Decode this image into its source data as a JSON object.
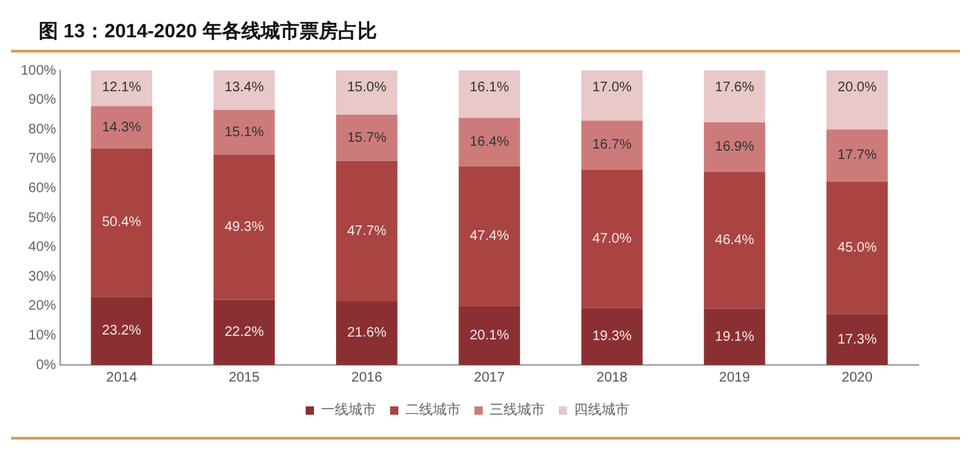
{
  "chart_data": {
    "type": "bar",
    "title": "图 13：2014-2020 年各线城市票房占比",
    "stacked": true,
    "categories": [
      "2014",
      "2015",
      "2016",
      "2017",
      "2018",
      "2019",
      "2020"
    ],
    "series": [
      {
        "name": "一线城市",
        "color": "#8b3032",
        "values": [
          23.2,
          22.2,
          21.6,
          20.1,
          19.3,
          19.1,
          17.3
        ],
        "value_labels": [
          "23.2%",
          "22.2%",
          "21.6%",
          "20.1%",
          "19.3%",
          "19.1%",
          "17.3%"
        ]
      },
      {
        "name": "二线城市",
        "color": "#a94442",
        "values": [
          50.4,
          49.3,
          47.7,
          47.4,
          47.0,
          46.4,
          45.0
        ],
        "value_labels": [
          "50.4%",
          "49.3%",
          "47.7%",
          "47.4%",
          "47.0%",
          "46.4%",
          "45.0%"
        ]
      },
      {
        "name": "三线城市",
        "color": "#cd7b7a",
        "values": [
          14.3,
          15.1,
          15.7,
          16.4,
          16.7,
          16.9,
          17.7
        ],
        "value_labels": [
          "14.3%",
          "15.1%",
          "15.7%",
          "16.4%",
          "16.7%",
          "16.9%",
          "17.7%"
        ]
      },
      {
        "name": "四线城市",
        "color": "#e8c8c8",
        "values": [
          12.1,
          13.4,
          15.0,
          16.1,
          17.0,
          17.6,
          20.0
        ],
        "value_labels": [
          "12.1%",
          "13.4%",
          "15.0%",
          "16.1%",
          "17.0%",
          "17.6%",
          "20.0%"
        ]
      }
    ],
    "ylim": [
      0,
      100
    ],
    "yticks": [
      {
        "value": 0,
        "label": "0%"
      },
      {
        "value": 10,
        "label": "10%"
      },
      {
        "value": 20,
        "label": "20%"
      },
      {
        "value": 30,
        "label": "30%"
      },
      {
        "value": 40,
        "label": "40%"
      },
      {
        "value": 50,
        "label": "50%"
      },
      {
        "value": 60,
        "label": "60%"
      },
      {
        "value": 70,
        "label": "70%"
      },
      {
        "value": 80,
        "label": "80%"
      },
      {
        "value": 90,
        "label": "90%"
      },
      {
        "value": 100,
        "label": "100%"
      }
    ],
    "grid": false,
    "legend": "bottom"
  }
}
